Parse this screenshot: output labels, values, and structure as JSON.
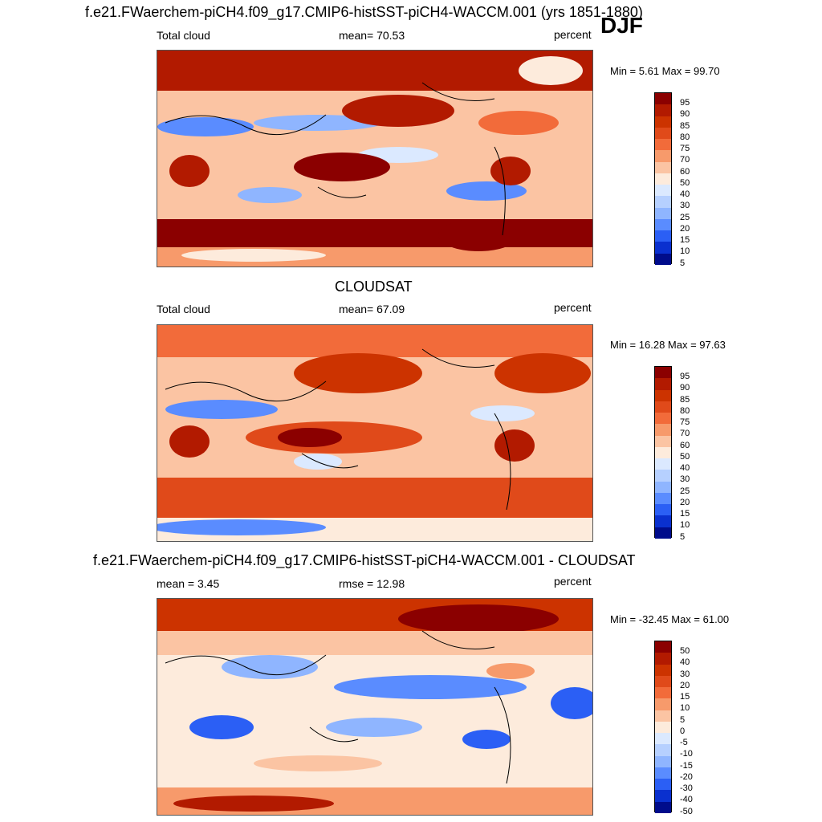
{
  "header": {
    "title": "f.e21.FWaerchem-piCH4.f09_g17.CMIP6-histSST-piCH4-WACCM.001 (yrs 1851-1880)",
    "season": "DJF"
  },
  "panels": [
    {
      "title": "",
      "variable": "Total cloud",
      "stat": "mean=  70.53",
      "units": "percent",
      "minmax": "Min =   5.61 Max =  99.70",
      "colorbar_labels": [
        "95",
        "90",
        "85",
        "80",
        "75",
        "70",
        "60",
        "50",
        "40",
        "30",
        "25",
        "20",
        "15",
        "10",
        "5"
      ]
    },
    {
      "title": "CLOUDSAT",
      "variable": "Total cloud",
      "stat": "mean=  67.09",
      "units": "percent",
      "minmax": "Min =  16.28 Max =  97.63",
      "colorbar_labels": [
        "95",
        "90",
        "85",
        "80",
        "75",
        "70",
        "60",
        "50",
        "40",
        "30",
        "25",
        "20",
        "15",
        "10",
        "5"
      ]
    },
    {
      "title": "f.e21.FWaerchem-piCH4.f09_g17.CMIP6-histSST-piCH4-WACCM.001 - CLOUDSAT",
      "variable": "mean =   3.45",
      "stat": "rmse =  12.98",
      "units": "percent",
      "minmax": "Min = -32.45 Max =  61.00",
      "colorbar_labels": [
        "50",
        "40",
        "30",
        "20",
        "15",
        "10",
        "5",
        "0",
        "-5",
        "-10",
        "-15",
        "-20",
        "-30",
        "-40",
        "-50"
      ]
    }
  ],
  "colors": {
    "palette": [
      "#8b0000",
      "#b21a00",
      "#cc3300",
      "#e04a1a",
      "#f26b3a",
      "#f79a6b",
      "#fbc4a3",
      "#fdebdc",
      "#dbe9ff",
      "#b6d0ff",
      "#8fb5ff",
      "#5a8cff",
      "#2b5ff5",
      "#0a30cf",
      "#000c8b"
    ]
  }
}
